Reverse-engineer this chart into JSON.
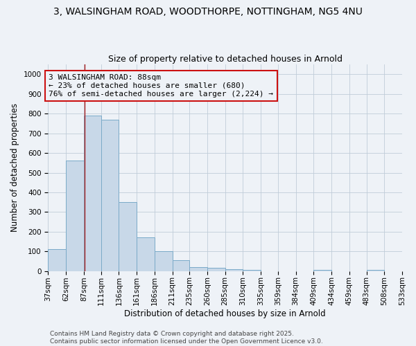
{
  "title_line1": "3, WALSINGHAM ROAD, WOODTHORPE, NOTTINGHAM, NG5 4NU",
  "title_line2": "Size of property relative to detached houses in Arnold",
  "bar_heights": [
    110,
    560,
    790,
    770,
    350,
    170,
    100,
    55,
    20,
    15,
    10,
    5,
    0,
    0,
    0,
    5,
    0,
    0,
    5,
    0
  ],
  "bin_labels": [
    "37sqm",
    "62sqm",
    "87sqm",
    "111sqm",
    "136sqm",
    "161sqm",
    "186sqm",
    "211sqm",
    "235sqm",
    "260sqm",
    "285sqm",
    "310sqm",
    "335sqm",
    "359sqm",
    "384sqm",
    "409sqm",
    "434sqm",
    "459sqm",
    "483sqm",
    "508sqm",
    "533sqm"
  ],
  "bin_edges": [
    37,
    62,
    87,
    111,
    136,
    161,
    186,
    211,
    235,
    260,
    285,
    310,
    335,
    359,
    384,
    409,
    434,
    459,
    483,
    508,
    533
  ],
  "bar_color": "#c8d8e8",
  "bar_edge_color": "#7aaac8",
  "ylabel": "Number of detached properties",
  "xlabel": "Distribution of detached houses by size in Arnold",
  "ylim": [
    0,
    1050
  ],
  "yticks": [
    0,
    100,
    200,
    300,
    400,
    500,
    600,
    700,
    800,
    900,
    1000
  ],
  "property_size": 88,
  "vline_color": "#aa2222",
  "annotation_line1": "3 WALSINGHAM ROAD: 88sqm",
  "annotation_line2": "← 23% of detached houses are smaller (680)",
  "annotation_line3": "76% of semi-detached houses are larger (2,224) →",
  "annotation_box_color": "#cc1111",
  "footer_line1": "Contains HM Land Registry data © Crown copyright and database right 2025.",
  "footer_line2": "Contains public sector information licensed under the Open Government Licence v3.0.",
  "background_color": "#eef2f7",
  "grid_color": "#c0ccd8",
  "title_fontsize": 10,
  "subtitle_fontsize": 9,
  "axis_label_fontsize": 8.5,
  "tick_fontsize": 7.5,
  "annotation_fontsize": 8,
  "footer_fontsize": 6.5
}
